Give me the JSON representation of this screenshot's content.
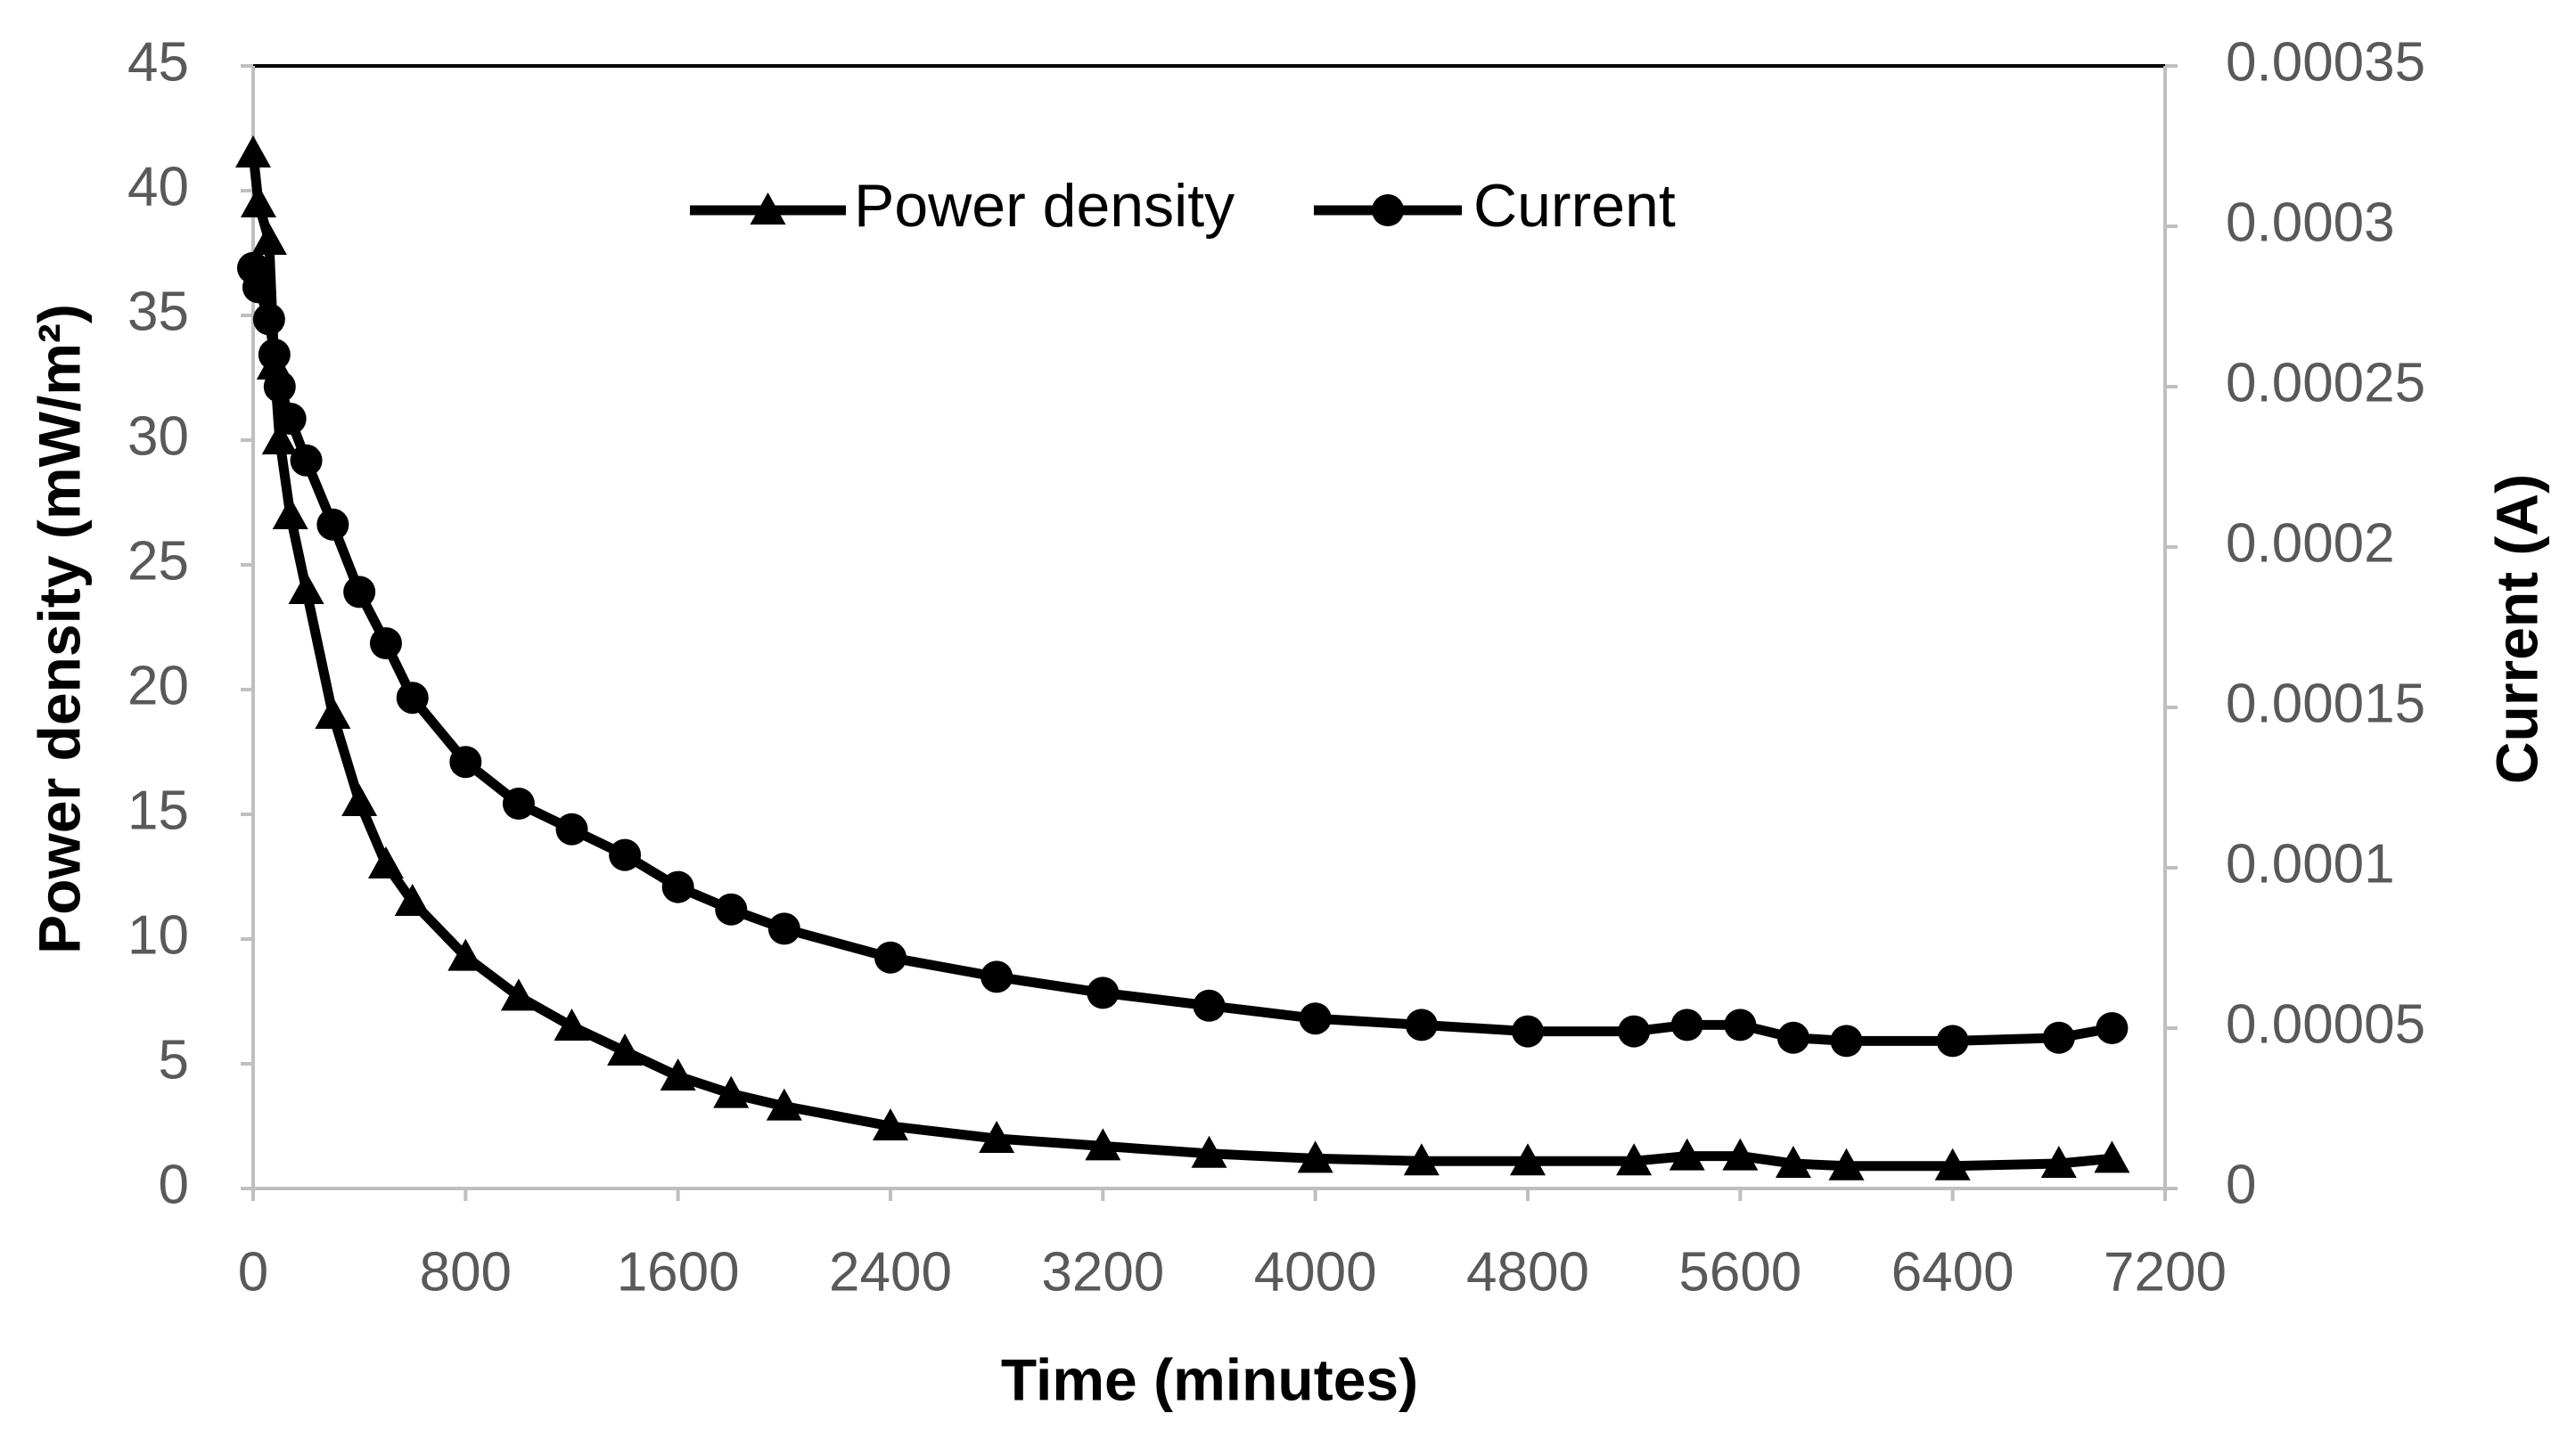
{
  "chart_data": {
    "type": "line",
    "x_label": "Time (minutes)",
    "y_label": "Power density (mW/m²)",
    "y2_label": "Current (A)",
    "x": [
      0,
      20,
      60,
      80,
      100,
      140,
      200,
      300,
      400,
      500,
      600,
      800,
      1000,
      1200,
      1400,
      1600,
      1800,
      2000,
      2400,
      2800,
      3200,
      3600,
      4000,
      4400,
      4800,
      5200,
      5400,
      5600,
      5800,
      6000,
      6400,
      6800,
      7000
    ],
    "series": [
      {
        "name": "Power density",
        "color": "#000000",
        "marker": "triangle",
        "values": [
          41.5,
          39.5,
          38,
          33,
          30,
          27,
          24,
          19,
          15.5,
          13,
          11.5,
          9.3,
          7.7,
          6.5,
          5.5,
          4.5,
          3.8,
          3.3,
          2.5,
          2.0,
          1.7,
          1.4,
          1.2,
          1.1,
          1.1,
          1.1,
          1.3,
          1.3,
          1.0,
          0.9,
          0.9,
          1.0,
          1.2
        ]
      },
      {
        "name": "Current",
        "color": "#000000",
        "marker": "circle",
        "axis": "y2",
        "values": [
          0.000287,
          0.000281,
          0.000271,
          0.00026,
          0.00025,
          0.00024,
          0.000227,
          0.000207,
          0.000186,
          0.00017,
          0.000153,
          0.000133,
          0.00012,
          0.000112,
          0.000104,
          9.4e-05,
          8.7e-05,
          8.1e-05,
          7.2e-05,
          6.6e-05,
          6.1e-05,
          5.7e-05,
          5.3e-05,
          5.1e-05,
          4.9e-05,
          4.9e-05,
          5.1e-05,
          5.1e-05,
          4.7e-05,
          4.6e-05,
          4.6e-05,
          4.7e-05,
          5e-05
        ]
      }
    ],
    "xlim": [
      0,
      7200
    ],
    "xticks": [
      0,
      800,
      1600,
      2400,
      3200,
      4000,
      4800,
      5600,
      6400,
      7200
    ],
    "ylim": [
      0,
      45
    ],
    "yticks": [
      0,
      5,
      10,
      15,
      20,
      25,
      30,
      35,
      40,
      45
    ],
    "y2lim": [
      0,
      0.00035
    ],
    "y2ticks": [
      0,
      5e-05,
      0.0001,
      0.00015,
      0.0002,
      0.00025,
      0.0003,
      0.00035
    ],
    "legend": "top",
    "grid": false
  }
}
